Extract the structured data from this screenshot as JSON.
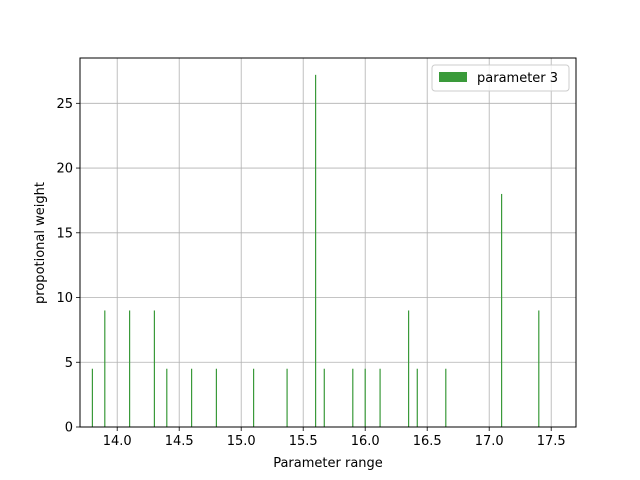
{
  "chart_data": {
    "type": "bar",
    "xlabel": "Parameter range",
    "ylabel": "propotional weight",
    "xlim": [
      13.7,
      17.7
    ],
    "ylim": [
      0,
      28.5
    ],
    "x_ticks": [
      14.0,
      14.5,
      15.0,
      15.5,
      16.0,
      16.5,
      17.0,
      17.5
    ],
    "x_tick_labels": [
      "14.0",
      "14.5",
      "15.0",
      "15.5",
      "16.0",
      "16.5",
      "17.0",
      "17.5"
    ],
    "y_ticks": [
      0,
      5,
      10,
      15,
      20,
      25
    ],
    "y_tick_labels": [
      "0",
      "5",
      "10",
      "15",
      "20",
      "25"
    ],
    "grid": true,
    "legend_position": "top-right",
    "bar_color": "#3a9a3a",
    "series": [
      {
        "name": "parameter 3",
        "x": [
          13.8,
          13.9,
          14.1,
          14.3,
          14.4,
          14.6,
          14.8,
          15.1,
          15.37,
          15.6,
          15.67,
          15.9,
          16.0,
          16.12,
          16.35,
          16.42,
          16.65,
          17.1,
          17.4
        ],
        "values": [
          4.5,
          9.0,
          9.0,
          9.0,
          4.5,
          4.5,
          4.5,
          4.5,
          4.5,
          27.2,
          4.5,
          4.5,
          4.5,
          4.5,
          9.0,
          4.5,
          4.5,
          18.0,
          9.0
        ]
      }
    ]
  }
}
